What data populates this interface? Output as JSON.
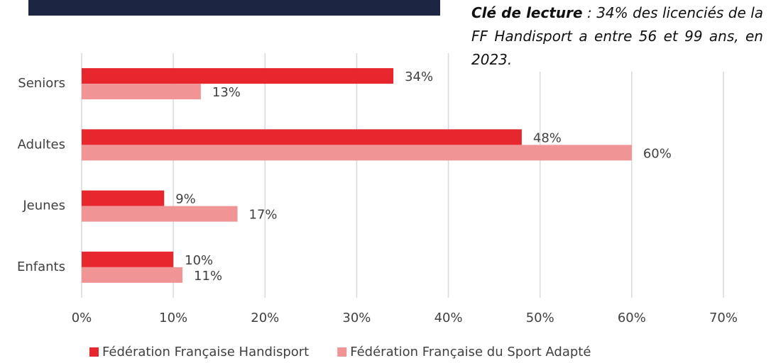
{
  "chart_data": {
    "type": "bar",
    "orientation": "horizontal",
    "annotation": {
      "lead": "Clé de lecture",
      "text": " : 34% des licenciés de la FF Handisport a entre 56 et 99 ans, en 2023."
    },
    "categories": [
      "Seniors",
      "Adultes",
      "Jeunes",
      "Enfants"
    ],
    "series": [
      {
        "name": "Fédération Française Handisport",
        "color": "#e8262e",
        "values": [
          34,
          48,
          9,
          10
        ],
        "value_labels": [
          "34%",
          "48%",
          "9%",
          "10%"
        ]
      },
      {
        "name": "Fédération Française du Sport Adapté",
        "color": "#f09496",
        "values": [
          13,
          60,
          17,
          11
        ],
        "value_labels": [
          "13%",
          "60%",
          "17%",
          "11%"
        ]
      }
    ],
    "xlim": [
      0,
      70
    ],
    "xticks": [
      {
        "value": 0,
        "label": "0%"
      },
      {
        "value": 10,
        "label": "10%"
      },
      {
        "value": 20,
        "label": "20%"
      },
      {
        "value": 30,
        "label": "30%"
      },
      {
        "value": 40,
        "label": "40%"
      },
      {
        "value": 50,
        "label": "50%"
      },
      {
        "value": 60,
        "label": "60%"
      },
      {
        "value": 70,
        "label": "70%"
      }
    ],
    "grid": true,
    "legend": "bottom"
  }
}
